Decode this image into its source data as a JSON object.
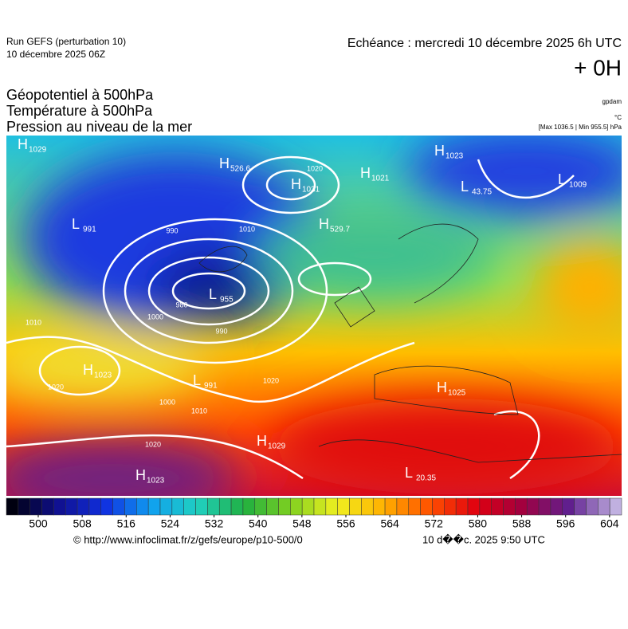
{
  "header": {
    "run": "Run GEFS (perturbation 10)",
    "run_date": "10 décembre 2025 06Z",
    "valid": "Echéance : mercredi 10 décembre 2025 6h UTC",
    "lead": "+ 0H"
  },
  "titles": [
    "Géopotentiel à 500hPa",
    "Température à 500hPa",
    "Pression au niveau de la mer"
  ],
  "units": [
    "gpdam",
    "°C",
    "[Max 1036.5 | Min 955.5] hPa"
  ],
  "centers": [
    {
      "letter": "H",
      "value": "1029"
    },
    {
      "letter": "H",
      "value": "526.6"
    },
    {
      "letter": "H",
      "value": "1031"
    },
    {
      "letter": "H",
      "value": "1021"
    },
    {
      "letter": "H",
      "value": "1023"
    },
    {
      "letter": "L",
      "value": "1009"
    },
    {
      "letter": "L",
      "value": "43.75"
    },
    {
      "letter": "L",
      "value": "991"
    },
    {
      "letter": "L",
      "value": "955"
    },
    {
      "letter": "H",
      "value": "529.7"
    },
    {
      "letter": "H",
      "value": "1023"
    },
    {
      "letter": "L",
      "value": "991"
    },
    {
      "letter": "H",
      "value": "1029"
    },
    {
      "letter": "H",
      "value": "1023"
    },
    {
      "letter": "L",
      "value": "20.35"
    },
    {
      "letter": "H",
      "value": "1025"
    }
  ],
  "isobars": [
    "990",
    "1000",
    "1010",
    "1020",
    "980",
    "990",
    "1000",
    "1010",
    "1020",
    "1020",
    "1010",
    "1020"
  ],
  "colorbar": {
    "ticks": [
      500,
      508,
      516,
      524,
      532,
      540,
      548,
      556,
      564,
      572,
      580,
      588,
      596,
      604
    ],
    "steps": 52,
    "stops": [
      "#000010",
      "#101090",
      "#1030e0",
      "#10a0f0",
      "#20d0c0",
      "#20b040",
      "#80d020",
      "#f0f020",
      "#ffb000",
      "#ff5000",
      "#e00010",
      "#a00040",
      "#602090",
      "#c0b0e0"
    ]
  },
  "footer": {
    "url": "© http://www.infoclimat.fr/z/gefs/europe/p10-500/0",
    "stamp": "10 d��c. 2025  9:50 UTC"
  }
}
